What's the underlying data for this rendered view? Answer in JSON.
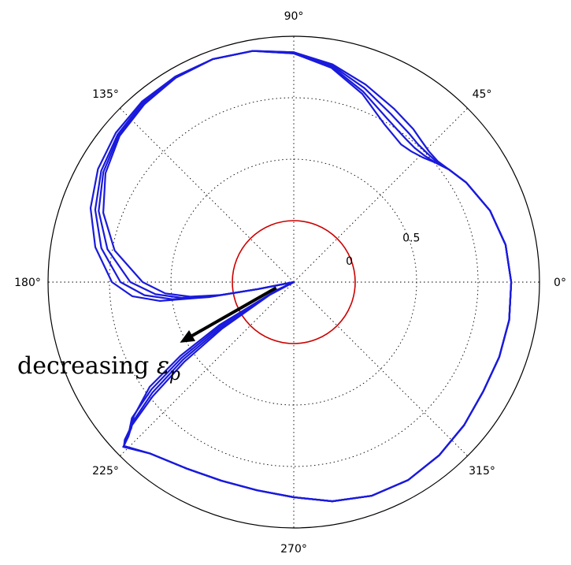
{
  "chart_data": {
    "type": "polar-line",
    "title": "",
    "angle_unit": "degrees",
    "theta_ticks": [
      {
        "deg": 0,
        "label": "0°"
      },
      {
        "deg": 45,
        "label": "45°"
      },
      {
        "deg": 90,
        "label": "90°"
      },
      {
        "deg": 135,
        "label": "135°"
      },
      {
        "deg": 180,
        "label": "180°"
      },
      {
        "deg": 225,
        "label": "225°"
      },
      {
        "deg": 270,
        "label": "270°"
      },
      {
        "deg": 315,
        "label": "315°"
      }
    ],
    "r_axis": {
      "min": -0.5,
      "max": 1.5,
      "ticks": [
        {
          "value": 0,
          "label": "0"
        },
        {
          "value": 0.5,
          "label": "0.5"
        },
        {
          "value": 1.0,
          "label": ""
        },
        {
          "value": 1.5,
          "label": ""
        }
      ]
    },
    "grid": true,
    "reference_circle": {
      "r": 0,
      "color": "#cc0000"
    },
    "series_color": "#1a1adc",
    "annotation": {
      "text": "decreasing",
      "symbol": "ε",
      "subscript": "p",
      "arrow_from": {
        "theta": 198,
        "r": -0.35
      },
      "arrow_to": {
        "theta": 208,
        "r": 0.55
      }
    },
    "series": [
      {
        "points": [
          [
            0,
            1.27
          ],
          [
            10,
            1.25
          ],
          [
            20,
            1.2
          ],
          [
            30,
            1.12
          ],
          [
            36,
            1.06
          ],
          [
            40,
            1.01
          ],
          [
            44,
            0.96
          ],
          [
            48,
            0.93
          ],
          [
            52,
            0.92
          ],
          [
            60,
            0.98
          ],
          [
            70,
            1.13
          ],
          [
            80,
            1.27
          ],
          [
            90,
            1.36
          ],
          [
            100,
            1.41
          ],
          [
            110,
            1.43
          ],
          [
            120,
            1.42
          ],
          [
            130,
            1.39
          ],
          [
            140,
            1.35
          ],
          [
            150,
            1.27
          ],
          [
            160,
            1.15
          ],
          [
            170,
            0.98
          ],
          [
            180,
            0.73
          ],
          [
            185,
            0.55
          ],
          [
            188,
            0.35
          ],
          [
            190,
            0.1
          ],
          [
            191,
            -0.2
          ],
          [
            191.5,
            -0.5
          ],
          [
            205,
            -0.35
          ],
          [
            210,
            0.2
          ],
          [
            213,
            0.6
          ],
          [
            216,
            0.95
          ],
          [
            220,
            1.2
          ],
          [
            222,
            1.28
          ],
          [
            223,
            1.38
          ],
          [
            224,
            1.42
          ],
          [
            230,
            1.32
          ],
          [
            240,
            1.25
          ],
          [
            250,
            1.22
          ],
          [
            260,
            1.22
          ],
          [
            270,
            1.25
          ],
          [
            280,
            1.31
          ],
          [
            290,
            1.35
          ],
          [
            300,
            1.36
          ],
          [
            310,
            1.34
          ],
          [
            320,
            1.31
          ],
          [
            330,
            1.28
          ],
          [
            340,
            1.28
          ],
          [
            350,
            1.28
          ],
          [
            360,
            1.27
          ]
        ]
      },
      {
        "points": [
          [
            0,
            1.27
          ],
          [
            10,
            1.25
          ],
          [
            20,
            1.2
          ],
          [
            30,
            1.12
          ],
          [
            36,
            1.06
          ],
          [
            40,
            1.01
          ],
          [
            44,
            0.98
          ],
          [
            48,
            0.97
          ],
          [
            52,
            0.98
          ],
          [
            60,
            1.03
          ],
          [
            70,
            1.15
          ],
          [
            80,
            1.28
          ],
          [
            90,
            1.36
          ],
          [
            100,
            1.41
          ],
          [
            110,
            1.43
          ],
          [
            120,
            1.42
          ],
          [
            130,
            1.4
          ],
          [
            140,
            1.36
          ],
          [
            150,
            1.29
          ],
          [
            160,
            1.19
          ],
          [
            170,
            1.04
          ],
          [
            180,
            0.83
          ],
          [
            185,
            0.63
          ],
          [
            188,
            0.42
          ],
          [
            190,
            0.12
          ],
          [
            191,
            -0.2
          ],
          [
            191.5,
            -0.5
          ],
          [
            206,
            -0.33
          ],
          [
            211,
            0.2
          ],
          [
            214,
            0.6
          ],
          [
            217,
            0.95
          ],
          [
            220,
            1.22
          ],
          [
            222,
            1.3
          ],
          [
            223,
            1.38
          ],
          [
            224,
            1.42
          ],
          [
            230,
            1.32
          ],
          [
            240,
            1.25
          ],
          [
            250,
            1.22
          ],
          [
            260,
            1.22
          ],
          [
            270,
            1.25
          ],
          [
            280,
            1.31
          ],
          [
            290,
            1.35
          ],
          [
            300,
            1.36
          ],
          [
            310,
            1.34
          ],
          [
            320,
            1.31
          ],
          [
            330,
            1.28
          ],
          [
            340,
            1.28
          ],
          [
            350,
            1.28
          ],
          [
            360,
            1.27
          ]
        ]
      },
      {
        "points": [
          [
            0,
            1.27
          ],
          [
            10,
            1.25
          ],
          [
            20,
            1.2
          ],
          [
            30,
            1.12
          ],
          [
            36,
            1.06
          ],
          [
            40,
            1.02
          ],
          [
            44,
            1.01
          ],
          [
            48,
            1.01
          ],
          [
            52,
            1.03
          ],
          [
            60,
            1.08
          ],
          [
            70,
            1.18
          ],
          [
            80,
            1.29
          ],
          [
            90,
            1.37
          ],
          [
            100,
            1.41
          ],
          [
            110,
            1.43
          ],
          [
            120,
            1.43
          ],
          [
            130,
            1.41
          ],
          [
            140,
            1.37
          ],
          [
            150,
            1.31
          ],
          [
            160,
            1.22
          ],
          [
            170,
            1.09
          ],
          [
            180,
            0.91
          ],
          [
            185,
            0.72
          ],
          [
            188,
            0.5
          ],
          [
            190,
            0.15
          ],
          [
            191,
            -0.2
          ],
          [
            191.5,
            -0.5
          ],
          [
            207,
            -0.3
          ],
          [
            212,
            0.2
          ],
          [
            215,
            0.6
          ],
          [
            218,
            0.96
          ],
          [
            221,
            1.24
          ],
          [
            222.5,
            1.32
          ],
          [
            223.5,
            1.39
          ],
          [
            224,
            1.42
          ],
          [
            230,
            1.32
          ],
          [
            240,
            1.25
          ],
          [
            250,
            1.22
          ],
          [
            260,
            1.22
          ],
          [
            270,
            1.25
          ],
          [
            280,
            1.31
          ],
          [
            290,
            1.35
          ],
          [
            300,
            1.36
          ],
          [
            310,
            1.34
          ],
          [
            320,
            1.31
          ],
          [
            330,
            1.28
          ],
          [
            340,
            1.28
          ],
          [
            350,
            1.28
          ],
          [
            360,
            1.27
          ]
        ]
      },
      {
        "points": [
          [
            0,
            1.27
          ],
          [
            10,
            1.25
          ],
          [
            20,
            1.2
          ],
          [
            30,
            1.12
          ],
          [
            36,
            1.06
          ],
          [
            40,
            1.03
          ],
          [
            44,
            1.03
          ],
          [
            48,
            1.05
          ],
          [
            52,
            1.08
          ],
          [
            60,
            1.13
          ],
          [
            70,
            1.21
          ],
          [
            80,
            1.3
          ],
          [
            90,
            1.37
          ],
          [
            100,
            1.41
          ],
          [
            110,
            1.43
          ],
          [
            120,
            1.43
          ],
          [
            130,
            1.42
          ],
          [
            140,
            1.39
          ],
          [
            150,
            1.34
          ],
          [
            160,
            1.26
          ],
          [
            170,
            1.14
          ],
          [
            180,
            0.98
          ],
          [
            185,
            0.82
          ],
          [
            188,
            0.6
          ],
          [
            190,
            0.2
          ],
          [
            191,
            -0.2
          ],
          [
            191.5,
            -0.5
          ],
          [
            208,
            -0.28
          ],
          [
            213,
            0.2
          ],
          [
            216,
            0.6
          ],
          [
            219,
            0.98
          ],
          [
            221.5,
            1.26
          ],
          [
            223,
            1.34
          ],
          [
            223.7,
            1.4
          ],
          [
            224,
            1.43
          ],
          [
            230,
            1.32
          ],
          [
            240,
            1.25
          ],
          [
            250,
            1.22
          ],
          [
            260,
            1.22
          ],
          [
            270,
            1.25
          ],
          [
            280,
            1.31
          ],
          [
            290,
            1.35
          ],
          [
            300,
            1.36
          ],
          [
            310,
            1.34
          ],
          [
            320,
            1.31
          ],
          [
            330,
            1.28
          ],
          [
            340,
            1.28
          ],
          [
            350,
            1.28
          ],
          [
            360,
            1.27
          ]
        ]
      }
    ]
  }
}
